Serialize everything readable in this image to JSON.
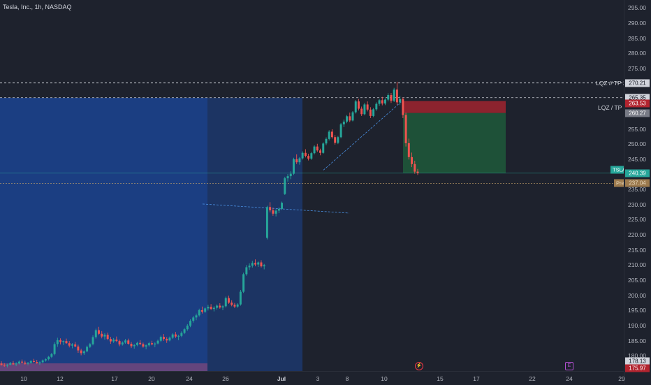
{
  "header": {
    "symbol_line": "Tesla, Inc., 1h, NASDAQ"
  },
  "colors": {
    "up": "#26a69a",
    "down": "#ef5350",
    "zone_blue": "#1a56c9",
    "profit": "#1f6b3f",
    "stop": "#b2242f"
  },
  "price_axis": {
    "min": 175,
    "max": 296,
    "ticks": [
      "295.00",
      "290.00",
      "285.00",
      "280.00",
      "275.00",
      "270.00",
      "265.00",
      "260.00",
      "255.00",
      "250.00",
      "245.00",
      "240.00",
      "235.00",
      "230.00",
      "225.00",
      "220.00",
      "215.00",
      "210.00",
      "205.00",
      "200.00",
      "195.00",
      "190.00",
      "185.00",
      "180.00"
    ],
    "labels": [
      {
        "text": "270.21",
        "price": 270.21,
        "bg": "#d1d4dc",
        "fg": "#131722"
      },
      {
        "text": "265.35",
        "price": 265.35,
        "bg": "#d1d4dc",
        "fg": "#131722"
      },
      {
        "text": "263.53",
        "price": 263.53,
        "bg": "#b2242f",
        "fg": "#ffffff"
      },
      {
        "text": "260.27",
        "price": 260.27,
        "bg": "#787b86",
        "fg": "#ffffff"
      },
      {
        "text": "240.39",
        "price": 240.39,
        "bg": "#26a69a",
        "fg": "#ffffff"
      },
      {
        "text": "237.04",
        "price": 237.04,
        "bg": "#9c7a4e",
        "fg": "#e9d9bd"
      },
      {
        "text": "178.13",
        "price": 178.13,
        "bg": "#d1d4dc",
        "fg": "#131722"
      },
      {
        "text": "175.97",
        "price": 175.97,
        "bg": "#b2242f",
        "fg": "#ffffff"
      }
    ]
  },
  "lines": {
    "tp2": {
      "label": "LQZ // TP 2",
      "price": 270.21
    },
    "tp1": {
      "label": "LQZ / TP 1",
      "price": 265.35
    }
  },
  "tags": {
    "symbol": "TSLA",
    "prepost": "Pre"
  },
  "time_axis": {
    "ticks": [
      {
        "label": "10",
        "bold": false
      },
      {
        "label": "12",
        "bold": false
      },
      {
        "label": "17",
        "bold": false
      },
      {
        "label": "20",
        "bold": false
      },
      {
        "label": "24",
        "bold": false
      },
      {
        "label": "26",
        "bold": false
      },
      {
        "label": "Jul",
        "bold": true
      },
      {
        "label": "3",
        "bold": false
      },
      {
        "label": "8",
        "bold": false
      },
      {
        "label": "10",
        "bold": false
      },
      {
        "label": "15",
        "bold": false
      },
      {
        "label": "17",
        "bold": false
      },
      {
        "label": "22",
        "bold": false
      },
      {
        "label": "24",
        "bold": false
      },
      {
        "label": "29",
        "bold": false
      }
    ]
  },
  "events": [
    {
      "icon": "lightning-icon",
      "glyph": "⚡"
    },
    {
      "icon": "earnings-icon",
      "glyph": "E"
    }
  ],
  "chart_data": {
    "type": "candlestick",
    "title": "Tesla, Inc., 1h, NASDAQ",
    "ylim": [
      175,
      296
    ],
    "position": {
      "side": "short",
      "entry": 260.27,
      "stop": 263.53,
      "target": 240.39
    },
    "last_price": 240.39,
    "prepost_price": 237.04,
    "candles": [
      [
        177.5,
        178.2,
        176.8,
        177.0
      ],
      [
        177.0,
        177.6,
        176.4,
        176.8
      ],
      [
        176.8,
        177.4,
        176.2,
        177.1
      ],
      [
        177.1,
        178.0,
        176.9,
        177.6
      ],
      [
        177.6,
        178.3,
        177.0,
        177.2
      ],
      [
        177.2,
        177.9,
        176.6,
        177.5
      ],
      [
        177.5,
        178.5,
        177.2,
        178.1
      ],
      [
        178.1,
        178.8,
        177.5,
        177.8
      ],
      [
        177.8,
        178.4,
        177.1,
        177.4
      ],
      [
        177.4,
        178.0,
        176.9,
        177.7
      ],
      [
        177.7,
        178.6,
        177.4,
        178.3
      ],
      [
        178.3,
        179.0,
        177.8,
        178.0
      ],
      [
        178.0,
        178.7,
        177.4,
        177.6
      ],
      [
        177.6,
        178.2,
        177.0,
        177.9
      ],
      [
        177.9,
        178.8,
        177.6,
        178.5
      ],
      [
        178.5,
        179.2,
        178.1,
        178.9
      ],
      [
        178.9,
        180.0,
        178.5,
        179.7
      ],
      [
        179.7,
        181.0,
        179.3,
        180.6
      ],
      [
        180.6,
        184.5,
        180.2,
        183.9
      ],
      [
        183.9,
        186.0,
        183.0,
        185.2
      ],
      [
        185.2,
        185.8,
        183.8,
        184.6
      ],
      [
        184.6,
        185.1,
        183.6,
        184.9
      ],
      [
        184.9,
        185.7,
        184.0,
        184.2
      ],
      [
        184.2,
        184.9,
        182.8,
        183.4
      ],
      [
        183.4,
        184.2,
        182.5,
        183.8
      ],
      [
        183.8,
        184.6,
        182.9,
        183.1
      ],
      [
        183.1,
        183.7,
        181.0,
        181.8
      ],
      [
        181.8,
        182.4,
        180.2,
        180.9
      ],
      [
        180.9,
        181.8,
        180.3,
        181.5
      ],
      [
        181.5,
        183.4,
        181.2,
        183.0
      ],
      [
        183.0,
        184.3,
        182.6,
        183.9
      ],
      [
        183.9,
        186.8,
        183.5,
        186.2
      ],
      [
        186.2,
        189.0,
        185.7,
        188.5
      ],
      [
        188.5,
        189.6,
        186.9,
        187.3
      ],
      [
        187.3,
        188.2,
        185.8,
        186.4
      ],
      [
        186.4,
        187.5,
        185.4,
        187.0
      ],
      [
        187.0,
        187.7,
        185.2,
        185.6
      ],
      [
        185.6,
        186.3,
        184.0,
        184.8
      ],
      [
        184.8,
        185.9,
        184.3,
        185.4
      ],
      [
        185.4,
        186.4,
        184.6,
        184.9
      ],
      [
        184.9,
        185.4,
        183.2,
        183.8
      ],
      [
        183.8,
        184.8,
        183.4,
        184.4
      ],
      [
        184.4,
        185.6,
        184.0,
        185.1
      ],
      [
        185.1,
        185.7,
        183.7,
        184.0
      ],
      [
        184.0,
        184.6,
        182.6,
        183.2
      ],
      [
        183.2,
        183.9,
        182.4,
        183.6
      ],
      [
        183.6,
        184.7,
        183.2,
        184.3
      ],
      [
        184.3,
        185.2,
        183.6,
        183.9
      ],
      [
        183.9,
        184.4,
        182.7,
        183.1
      ],
      [
        183.1,
        183.8,
        182.2,
        183.5
      ],
      [
        183.5,
        184.6,
        183.1,
        184.2
      ],
      [
        184.2,
        185.0,
        183.5,
        183.8
      ],
      [
        183.8,
        184.5,
        182.9,
        184.1
      ],
      [
        184.1,
        185.4,
        183.8,
        185.0
      ],
      [
        185.0,
        186.7,
        184.6,
        186.3
      ],
      [
        186.3,
        187.2,
        185.0,
        185.6
      ],
      [
        185.6,
        186.2,
        184.3,
        185.1
      ],
      [
        185.1,
        186.4,
        184.8,
        186.0
      ],
      [
        186.0,
        187.5,
        185.6,
        187.1
      ],
      [
        187.1,
        187.9,
        185.9,
        186.4
      ],
      [
        186.4,
        187.0,
        185.2,
        186.6
      ],
      [
        186.6,
        188.1,
        186.2,
        187.6
      ],
      [
        187.6,
        189.2,
        187.2,
        188.8
      ],
      [
        188.8,
        190.5,
        188.3,
        190.0
      ],
      [
        190.0,
        192.1,
        189.5,
        191.6
      ],
      [
        191.6,
        193.2,
        191.0,
        192.7
      ],
      [
        192.7,
        194.0,
        191.8,
        193.4
      ],
      [
        193.4,
        195.6,
        193.0,
        195.1
      ],
      [
        195.1,
        196.3,
        194.0,
        194.6
      ],
      [
        194.6,
        196.0,
        194.2,
        195.7
      ],
      [
        195.7,
        196.9,
        195.0,
        196.2
      ],
      [
        196.2,
        197.1,
        195.2,
        195.5
      ],
      [
        195.5,
        196.4,
        194.7,
        195.9
      ],
      [
        195.9,
        197.0,
        195.3,
        196.6
      ],
      [
        196.6,
        197.4,
        195.6,
        196.0
      ],
      [
        196.0,
        196.8,
        195.1,
        196.4
      ],
      [
        196.4,
        199.6,
        196.0,
        199.1
      ],
      [
        199.1,
        199.9,
        197.2,
        197.6
      ],
      [
        197.6,
        198.4,
        196.4,
        196.9
      ],
      [
        196.9,
        197.5,
        195.8,
        196.3
      ],
      [
        196.3,
        197.4,
        195.9,
        197.0
      ],
      [
        197.0,
        201.8,
        196.6,
        201.2
      ],
      [
        201.2,
        207.5,
        200.8,
        207.0
      ],
      [
        207.0,
        210.0,
        206.5,
        209.3
      ],
      [
        209.3,
        210.6,
        208.4,
        209.8
      ],
      [
        209.8,
        211.4,
        209.2,
        210.7
      ],
      [
        210.7,
        211.9,
        209.6,
        210.2
      ],
      [
        210.2,
        211.2,
        209.4,
        210.9
      ],
      [
        210.9,
        211.6,
        209.2,
        209.6
      ],
      [
        209.6,
        210.4,
        208.6,
        210.0
      ],
      [
        219.0,
        229.6,
        218.5,
        229.2
      ],
      [
        229.2,
        230.8,
        227.4,
        228.1
      ],
      [
        228.1,
        229.0,
        226.3,
        227.0
      ],
      [
        227.0,
        228.5,
        226.1,
        228.0
      ],
      [
        228.0,
        229.1,
        227.2,
        228.6
      ],
      [
        228.6,
        231.0,
        228.2,
        230.6
      ],
      [
        233.5,
        239.2,
        233.2,
        238.7
      ],
      [
        238.7,
        240.1,
        237.6,
        239.4
      ],
      [
        239.4,
        241.0,
        238.4,
        240.2
      ],
      [
        240.2,
        245.5,
        239.8,
        245.0
      ],
      [
        245.0,
        246.6,
        243.4,
        244.0
      ],
      [
        244.0,
        245.7,
        243.2,
        245.3
      ],
      [
        245.3,
        247.6,
        244.9,
        247.1
      ],
      [
        247.1,
        248.3,
        245.6,
        246.1
      ],
      [
        246.1,
        246.8,
        244.6,
        245.2
      ],
      [
        245.2,
        247.4,
        244.8,
        247.0
      ],
      [
        247.0,
        249.6,
        246.6,
        249.2
      ],
      [
        249.2,
        250.1,
        247.4,
        247.9
      ],
      [
        247.9,
        248.5,
        246.3,
        247.1
      ],
      [
        247.1,
        250.6,
        246.8,
        250.2
      ],
      [
        250.2,
        252.2,
        249.6,
        251.7
      ],
      [
        251.7,
        254.6,
        251.2,
        254.1
      ],
      [
        254.1,
        254.9,
        251.8,
        252.3
      ],
      [
        252.3,
        253.0,
        249.8,
        250.4
      ],
      [
        250.4,
        252.7,
        250.0,
        252.3
      ],
      [
        252.3,
        257.0,
        251.9,
        256.5
      ],
      [
        256.5,
        258.1,
        255.6,
        257.4
      ],
      [
        257.4,
        259.6,
        256.9,
        259.2
      ],
      [
        259.2,
        260.4,
        257.2,
        257.8
      ],
      [
        257.8,
        260.9,
        257.5,
        260.5
      ],
      [
        260.5,
        264.6,
        260.1,
        264.1
      ],
      [
        264.1,
        264.9,
        261.1,
        261.7
      ],
      [
        261.7,
        262.4,
        259.3,
        259.9
      ],
      [
        259.9,
        263.6,
        259.5,
        263.1
      ],
      [
        263.1,
        264.1,
        260.8,
        261.4
      ],
      [
        261.4,
        262.2,
        258.6,
        259.3
      ],
      [
        259.3,
        261.9,
        258.9,
        261.5
      ],
      [
        261.5,
        263.8,
        261.0,
        263.3
      ],
      [
        263.3,
        264.9,
        262.6,
        264.5
      ],
      [
        264.5,
        265.6,
        262.8,
        263.4
      ],
      [
        263.4,
        265.1,
        262.9,
        264.7
      ],
      [
        264.7,
        266.8,
        264.1,
        266.2
      ],
      [
        266.2,
        266.9,
        263.6,
        264.3
      ],
      [
        264.3,
        268.6,
        263.9,
        268.0
      ],
      [
        268.0,
        270.6,
        263.0,
        263.8
      ],
      [
        263.8,
        265.9,
        262.9,
        264.9
      ],
      [
        264.9,
        265.4,
        258.6,
        259.6
      ],
      [
        259.6,
        260.4,
        249.2,
        250.3
      ],
      [
        250.3,
        251.8,
        244.9,
        245.7
      ],
      [
        245.7,
        247.2,
        242.4,
        243.4
      ],
      [
        243.4,
        244.5,
        240.2,
        240.9
      ],
      [
        240.9,
        241.8,
        239.8,
        240.39
      ]
    ]
  }
}
